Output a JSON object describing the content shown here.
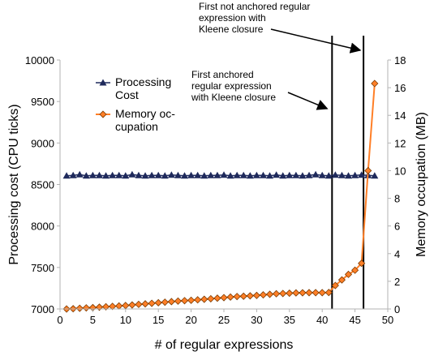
{
  "chart_data": {
    "type": "line",
    "x": [
      1,
      2,
      3,
      4,
      5,
      6,
      7,
      8,
      9,
      10,
      11,
      12,
      13,
      14,
      15,
      16,
      17,
      18,
      19,
      20,
      21,
      22,
      23,
      24,
      25,
      26,
      27,
      28,
      29,
      30,
      31,
      32,
      33,
      34,
      35,
      36,
      37,
      38,
      39,
      40,
      41,
      42,
      43,
      44,
      45,
      46,
      47,
      48
    ],
    "xlabel": "# of regular expressions",
    "xlim": [
      0,
      50
    ],
    "xticks": [
      "0",
      "5",
      "10",
      "15",
      "20",
      "25",
      "30",
      "35",
      "40",
      "45",
      "50"
    ],
    "ylabel_left": "Processing cost (CPU ticks)",
    "ylim_left": [
      7000,
      10000
    ],
    "yticks_left": [
      "7000",
      "7500",
      "8000",
      "8500",
      "9000",
      "9500",
      "10000"
    ],
    "ylabel_right": "Memory occupation (MB)",
    "ylim_right": [
      0,
      18
    ],
    "yticks_right": [
      "0",
      "2",
      "4",
      "6",
      "8",
      "10",
      "12",
      "14",
      "16",
      "18"
    ],
    "grid": false,
    "legend": "top-left",
    "series": [
      {
        "name": "Processing Cost",
        "axis": "left",
        "color": "#1f2a5c",
        "marker": "triangle",
        "values": [
          8605,
          8610,
          8620,
          8605,
          8610,
          8610,
          8605,
          8610,
          8610,
          8605,
          8620,
          8610,
          8605,
          8610,
          8610,
          8605,
          8615,
          8610,
          8605,
          8610,
          8610,
          8605,
          8610,
          8610,
          8615,
          8605,
          8610,
          8610,
          8605,
          8610,
          8610,
          8605,
          8615,
          8605,
          8610,
          8610,
          8605,
          8610,
          8620,
          8610,
          8605,
          8615,
          8610,
          8605,
          8610,
          8615,
          8610,
          8605
        ]
      },
      {
        "name": "Memory oc-\ncupation",
        "axis": "right",
        "color": "#ff7f27",
        "marker": "diamond",
        "values": [
          0.0,
          0.02,
          0.05,
          0.08,
          0.1,
          0.13,
          0.16,
          0.19,
          0.22,
          0.25,
          0.29,
          0.33,
          0.37,
          0.41,
          0.45,
          0.49,
          0.53,
          0.57,
          0.6,
          0.63,
          0.66,
          0.7,
          0.74,
          0.78,
          0.82,
          0.86,
          0.9,
          0.92,
          0.95,
          0.98,
          1.02,
          1.06,
          1.1,
          1.12,
          1.14,
          1.16,
          1.17,
          1.18,
          1.18,
          1.18,
          1.19,
          1.7,
          2.1,
          2.5,
          2.8,
          3.3,
          10.0,
          16.3
        ]
      }
    ],
    "vertical_lines": [
      41.5,
      46.3
    ],
    "annotations": [
      {
        "text": "First anchored\nregular expression\nwith Kleene closure",
        "points_to": 41.5
      },
      {
        "text": "First not anchored regular\nexpression with\nKleene closure",
        "points_to": 46.3
      }
    ]
  }
}
